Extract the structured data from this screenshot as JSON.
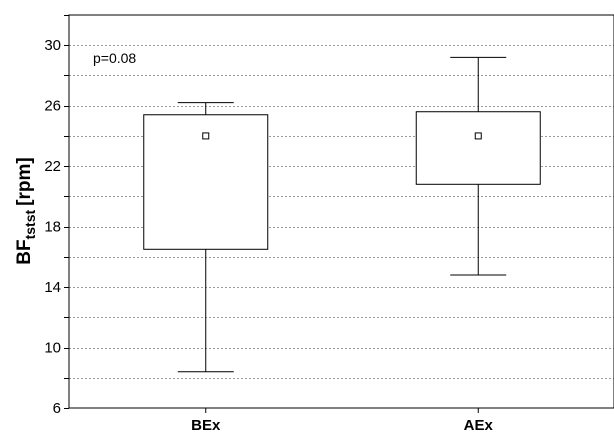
{
  "chart_data": {
    "type": "boxplot",
    "categories": [
      "BEx",
      "AEx"
    ],
    "series": [
      {
        "category": "BEx",
        "whisker_min": 8.4,
        "q1": 16.5,
        "median": 24.0,
        "q3": 25.4,
        "whisker_max": 26.2
      },
      {
        "category": "AEx",
        "whisker_min": 14.8,
        "q1": 20.8,
        "median": 24.0,
        "q3": 25.6,
        "whisker_max": 29.2
      }
    ],
    "ylabel_main": "BF",
    "ylabel_sub": "tstst",
    "ylabel_unit": "[rpm]",
    "ylim": [
      6,
      32
    ],
    "yticks": [
      6,
      10,
      14,
      18,
      22,
      26,
      30
    ],
    "grid": true,
    "grid_step": 2,
    "annotation": "p=0.08",
    "colors": {
      "box_fill": "#ffffff",
      "stroke": "#000000",
      "grid": "#9a9a9a"
    }
  }
}
